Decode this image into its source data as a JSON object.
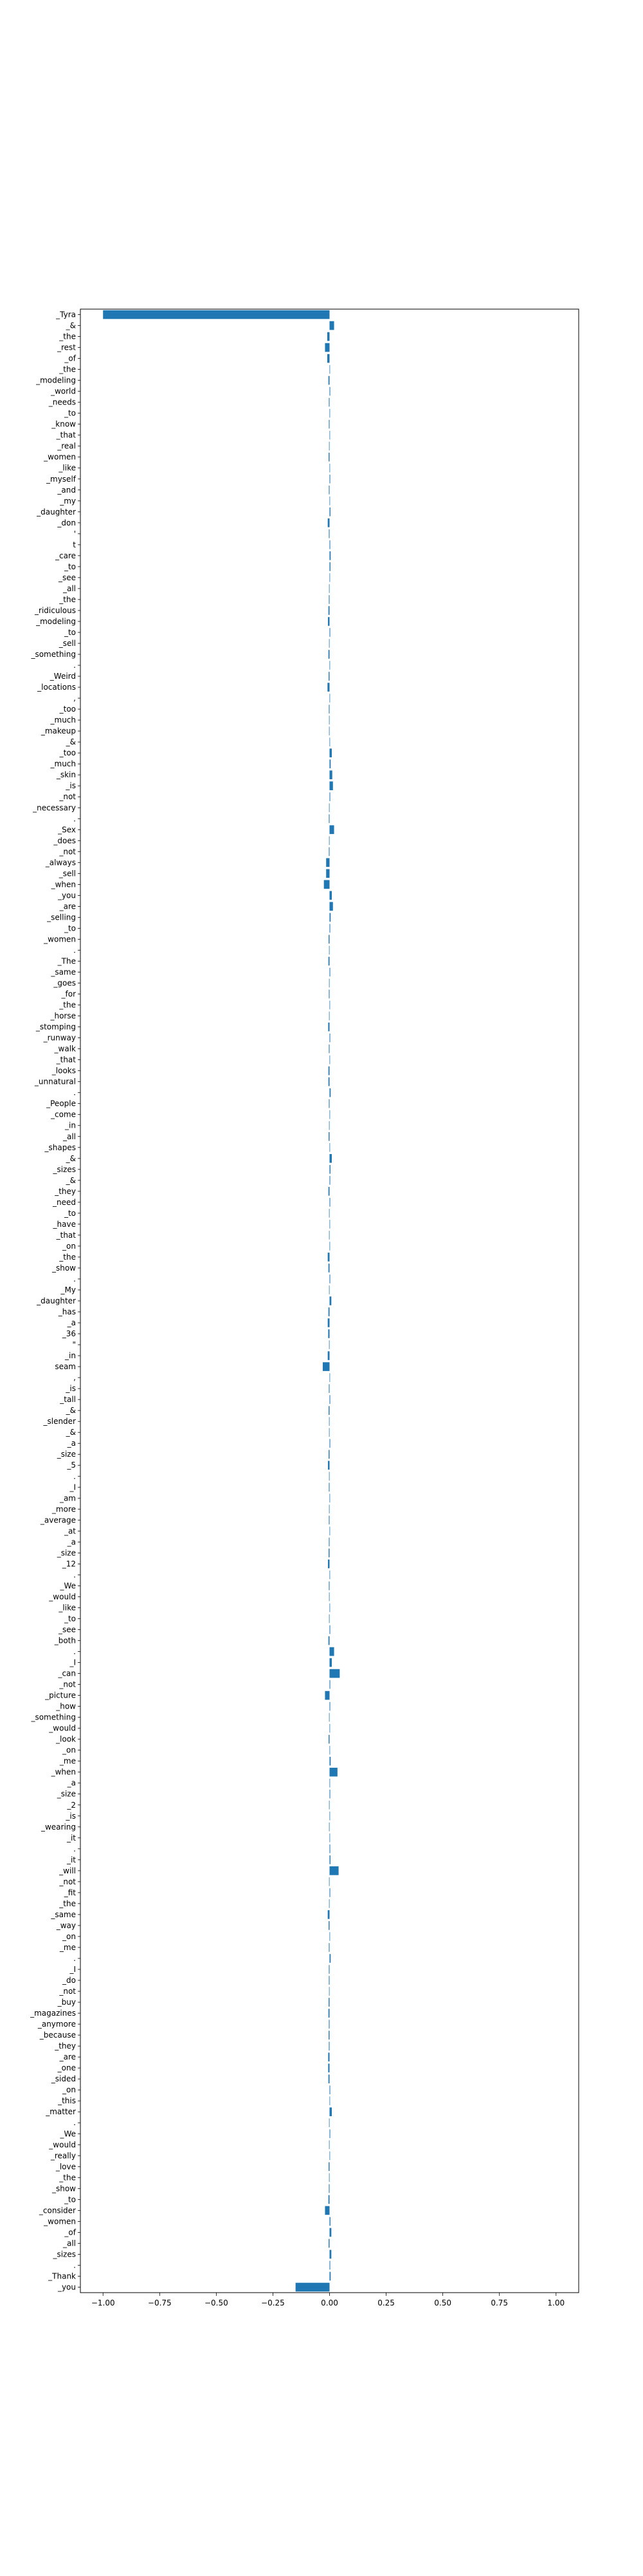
{
  "chart_data": {
    "type": "bar",
    "orientation": "horizontal",
    "title": "",
    "xlabel": "",
    "ylabel": "",
    "xlim": [
      -1.1,
      1.1
    ],
    "xticks": [
      -1.0,
      -0.75,
      -0.5,
      -0.25,
      0.0,
      0.25,
      0.5,
      0.75,
      1.0
    ],
    "xtick_labels": [
      "−1.00",
      "−0.75",
      "−0.50",
      "−0.25",
      "0.00",
      "0.25",
      "0.50",
      "0.75",
      "1.00"
    ],
    "grid": false,
    "legend": "none",
    "bar_color": "#1f77b4",
    "categories": [
      "_Tyra",
      "_&",
      "_the",
      "_rest",
      "_of",
      "_the",
      "_modeling",
      "_world",
      "_needs",
      "_to",
      "_know",
      "_that",
      "_real",
      "_women",
      "_like",
      "_myself",
      "_and",
      "_my",
      "_daughter",
      "_don",
      "'",
      "t",
      "_care",
      "_to",
      "_see",
      "_all",
      "_the",
      "_ridiculous",
      "_modeling",
      "_to",
      "_sell",
      "_something",
      ".",
      "_Weird",
      "_locations",
      ",",
      "_too",
      "_much",
      "_makeup",
      "_&",
      "_too",
      "_much",
      "_skin",
      "_is",
      "_not",
      "_necessary",
      ".",
      "_Sex",
      "_does",
      "_not",
      "_always",
      "_sell",
      "_when",
      "_you",
      "_are",
      "_selling",
      "_to",
      "_women",
      ".",
      "_The",
      "_same",
      "_goes",
      "_for",
      "_the",
      "_horse",
      "_stomping",
      "_runway",
      "_walk",
      "_that",
      "_looks",
      "_unnatural",
      ".",
      "_People",
      "_come",
      "_in",
      "_all",
      "_shapes",
      "_&",
      "_sizes",
      "_&",
      "_they",
      "_need",
      "_to",
      "_have",
      "_that",
      "_on",
      "_the",
      "_show",
      ".",
      "_My",
      "_daughter",
      "_has",
      "_a",
      "_36",
      "\"",
      "_in",
      "seam",
      ",",
      "_is",
      "_tall",
      "_&",
      "_slender",
      "_&",
      "_a",
      "_size",
      "_5",
      ".",
      "_I",
      "_am",
      "_more",
      "_average",
      "_at",
      "_a",
      "_size",
      "_12",
      ".",
      "_We",
      "_would",
      "_like",
      "_to",
      "_see",
      "_both",
      ".",
      "_I",
      "_can",
      "_not",
      "_picture",
      "_how",
      "_something",
      "_would",
      "_look",
      "_on",
      "_me",
      "_when",
      "_a",
      "_size",
      "_2",
      "_is",
      "_wearing",
      "_it",
      ".",
      "_it",
      "_will",
      "_not",
      "_fit",
      "_the",
      "_same",
      "_way",
      "_on",
      "_me",
      ".",
      "_I",
      "_do",
      "_not",
      "_buy",
      "_magazines",
      "_anymore",
      "_because",
      "_they",
      "_are",
      "_one",
      "_sided",
      "_on",
      "_this",
      "_matter",
      ".",
      "_We",
      "_would",
      "_really",
      "_love",
      "_the",
      "_show",
      "_to",
      "_consider",
      "_women",
      "_of",
      "_all",
      "_sizes",
      ".",
      "_Thank",
      "_you"
    ],
    "values": [
      -1.0,
      0.02,
      -0.01,
      -0.02,
      -0.01,
      0.0,
      -0.005,
      0.003,
      -0.003,
      0.002,
      -0.003,
      0.002,
      -0.002,
      -0.004,
      0.002,
      0.003,
      -0.003,
      0.002,
      0.004,
      -0.008,
      -0.003,
      0.003,
      0.005,
      0.004,
      0.002,
      -0.001,
      -0.003,
      -0.005,
      -0.007,
      0.003,
      -0.002,
      -0.005,
      0.002,
      -0.004,
      -0.009,
      0.002,
      -0.003,
      -0.002,
      -0.002,
      0.002,
      0.01,
      0.005,
      0.012,
      0.015,
      0.003,
      -0.002,
      -0.003,
      0.02,
      -0.002,
      -0.003,
      -0.015,
      -0.015,
      -0.025,
      0.01,
      0.015,
      0.005,
      0.003,
      -0.004,
      -0.002,
      -0.005,
      0.003,
      -0.002,
      -0.003,
      0.002,
      -0.002,
      -0.006,
      0.003,
      -0.003,
      0.002,
      -0.005,
      -0.005,
      0.005,
      -0.003,
      0.002,
      -0.002,
      -0.004,
      0.002,
      0.01,
      0.004,
      0.003,
      -0.005,
      0.003,
      -0.002,
      0.002,
      -0.002,
      0.002,
      -0.008,
      -0.005,
      0.003,
      -0.002,
      0.008,
      -0.005,
      -0.008,
      -0.006,
      -0.002,
      -0.008,
      -0.03,
      0.002,
      -0.003,
      0.003,
      -0.004,
      -0.002,
      -0.002,
      0.003,
      -0.004,
      -0.007,
      -0.002,
      -0.003,
      0.002,
      -0.002,
      -0.003,
      0.002,
      -0.003,
      -0.004,
      -0.007,
      0.002,
      -0.003,
      -0.002,
      0.002,
      -0.002,
      0.003,
      -0.005,
      0.02,
      0.01,
      0.045,
      0.003,
      -0.02,
      0.003,
      -0.002,
      0.002,
      -0.004,
      0.002,
      0.005,
      0.035,
      0.002,
      0.003,
      -0.002,
      0.002,
      -0.002,
      0.002,
      0.003,
      0.004,
      0.04,
      -0.002,
      0.003,
      -0.002,
      -0.008,
      -0.004,
      0.002,
      -0.003,
      0.005,
      -0.003,
      -0.003,
      -0.002,
      -0.004,
      -0.005,
      -0.003,
      -0.004,
      -0.003,
      -0.006,
      -0.006,
      -0.005,
      0.003,
      0.002,
      0.01,
      -0.002,
      0.003,
      -0.002,
      0.002,
      -0.004,
      -0.002,
      -0.003,
      -0.005,
      -0.02,
      0.004,
      0.008,
      -0.004,
      0.008,
      0.003,
      0.005,
      -0.15
    ]
  }
}
